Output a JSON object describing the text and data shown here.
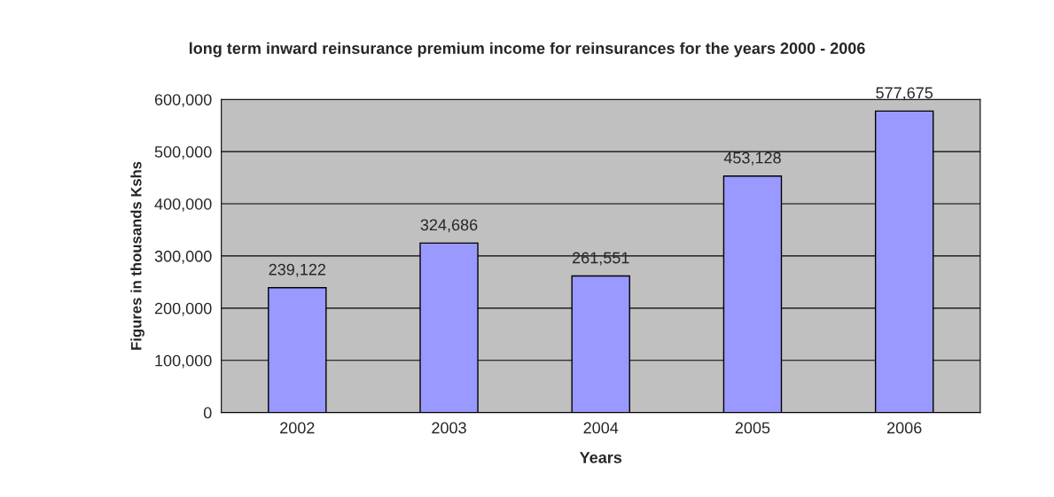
{
  "chart_data": {
    "type": "bar",
    "title": "long term inward reinsurance premium income for reinsurances for the years 2000 - 2006",
    "xlabel": "Years",
    "ylabel": "Figures in thousands Kshs",
    "categories": [
      "2002",
      "2003",
      "2004",
      "2005",
      "2006"
    ],
    "values": [
      239122,
      324686,
      261551,
      453128,
      577675
    ],
    "value_labels": [
      "239,122",
      "324,686",
      "261,551",
      "453,128",
      "577,675"
    ],
    "color": "#9999ff",
    "ylim": [
      0,
      600000
    ],
    "yticks": [
      0,
      {
        "value": 100000,
        "label": "100,000"
      },
      {
        "value": 200000,
        "label": "200,000"
      },
      {
        "value": 300000,
        "label": "300,000"
      },
      {
        "value": 400000,
        "label": "400,000"
      },
      {
        "value": 500000,
        "label": "500,000"
      },
      {
        "value": 600000,
        "label": "600,000"
      }
    ],
    "grid": "y"
  }
}
